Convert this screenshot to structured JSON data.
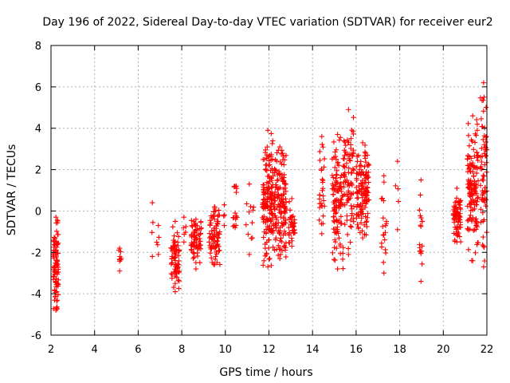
{
  "chart_data": {
    "type": "scatter",
    "title": "Day 196 of 2022, Sidereal Day-to-day VTEC variation (SDTVAR) for receiver eur2",
    "xlabel": "GPS time / hours",
    "ylabel": "SDTVAR / TECUs",
    "xlim": [
      2,
      22
    ],
    "ylim": [
      -6,
      8
    ],
    "xticks": [
      "2",
      "4",
      "6",
      "8",
      "10",
      "12",
      "14",
      "16",
      "18",
      "20",
      "22"
    ],
    "yticks": [
      "-6",
      "-4",
      "-2",
      "0",
      "2",
      "4",
      "6",
      "8"
    ],
    "grid": true,
    "marker": "+",
    "color": "#ff0000",
    "series": [
      {
        "name": "SDTVAR",
        "clusters": [
          {
            "x": [
              2.1,
              2.35
            ],
            "y": [
              -4.8,
              -0.3
            ],
            "n": 90
          },
          {
            "x": [
              5.05,
              5.25
            ],
            "y": [
              -2.9,
              -1.8
            ],
            "n": 10
          },
          {
            "x": [
              6.6,
              6.7
            ],
            "y": [
              -2.2,
              0.4
            ],
            "n": 4
          },
          {
            "x": [
              6.85,
              7.0
            ],
            "y": [
              -2.1,
              -0.7
            ],
            "n": 5
          },
          {
            "x": [
              7.5,
              7.9
            ],
            "y": [
              -3.9,
              -0.5
            ],
            "n": 70
          },
          {
            "x": [
              8.0,
              8.2
            ],
            "y": [
              -1.5,
              -0.3
            ],
            "n": 6
          },
          {
            "x": [
              8.4,
              8.9
            ],
            "y": [
              -2.8,
              -0.4
            ],
            "n": 70
          },
          {
            "x": [
              9.25,
              9.75
            ],
            "y": [
              -2.6,
              0.2
            ],
            "n": 80
          },
          {
            "x": [
              9.9,
              10.0
            ],
            "y": [
              -0.7,
              0.3
            ],
            "n": 4
          },
          {
            "x": [
              10.35,
              10.55
            ],
            "y": [
              -0.8,
              -0.1
            ],
            "n": 10
          },
          {
            "x": [
              10.4,
              10.6
            ],
            "y": [
              0.9,
              1.2
            ],
            "n": 6
          },
          {
            "x": [
              10.9,
              11.3
            ],
            "y": [
              -2.1,
              1.3
            ],
            "n": 12
          },
          {
            "x": [
              11.7,
              12.2
            ],
            "y": [
              -2.7,
              3.9
            ],
            "n": 160
          },
          {
            "x": [
              12.2,
              12.8
            ],
            "y": [
              -2.3,
              3.1
            ],
            "n": 150
          },
          {
            "x": [
              12.9,
              13.2
            ],
            "y": [
              -1.7,
              0.6
            ],
            "n": 40
          },
          {
            "x": [
              14.3,
              14.55
            ],
            "y": [
              -1.1,
              3.6
            ],
            "n": 30
          },
          {
            "x": [
              14.9,
              15.4
            ],
            "y": [
              -2.8,
              3.7
            ],
            "n": 110
          },
          {
            "x": [
              15.4,
              15.9
            ],
            "y": [
              -2.1,
              4.9
            ],
            "n": 90
          },
          {
            "x": [
              16.0,
              16.6
            ],
            "y": [
              -1.3,
              3.3
            ],
            "n": 130
          },
          {
            "x": [
              17.15,
              17.4
            ],
            "y": [
              -3.0,
              1.7
            ],
            "n": 20
          },
          {
            "x": [
              17.8,
              18.0
            ],
            "y": [
              -0.9,
              2.4
            ],
            "n": 5
          },
          {
            "x": [
              18.9,
              19.05
            ],
            "y": [
              -3.4,
              1.5
            ],
            "n": 18
          },
          {
            "x": [
              20.45,
              20.8
            ],
            "y": [
              -1.5,
              1.1
            ],
            "n": 70
          },
          {
            "x": [
              21.1,
              21.6
            ],
            "y": [
              -2.4,
              4.6
            ],
            "n": 140
          },
          {
            "x": [
              21.7,
              22.0
            ],
            "y": [
              -2.7,
              6.2
            ],
            "n": 70
          }
        ]
      }
    ]
  }
}
